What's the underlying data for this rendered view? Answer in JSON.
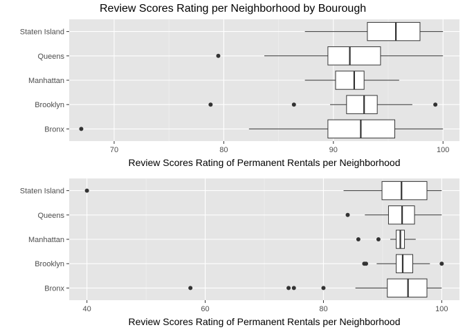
{
  "chart_data": [
    {
      "type": "boxplot",
      "title": "Review Scores Rating per Neighborhood by Bourough",
      "xlabel": "Review Scores Rating of Permanent Rentals per Neighborhood",
      "ylabel": "",
      "xlim": [
        65.9,
        101.5
      ],
      "xticks": [
        70,
        80,
        90,
        100
      ],
      "grid": true,
      "categories": [
        "Bronx",
        "Brooklyn",
        "Manhattan",
        "Queens",
        "Staten Island"
      ],
      "boxes": [
        {
          "category": "Bronx",
          "whisker_low": 82.3,
          "q1": 89.5,
          "median": 92.5,
          "q3": 95.6,
          "whisker_high": 100,
          "outliers": [
            67
          ]
        },
        {
          "category": "Brooklyn",
          "whisker_low": 89.7,
          "q1": 91.2,
          "median": 92.8,
          "q3": 94.0,
          "whisker_high": 97.2,
          "outliers": [
            78.8,
            86.4,
            99.3
          ]
        },
        {
          "category": "Manhattan",
          "whisker_low": 87.4,
          "q1": 90.2,
          "median": 91.9,
          "q3": 92.8,
          "whisker_high": 96.0,
          "outliers": []
        },
        {
          "category": "Queens",
          "whisker_low": 83.7,
          "q1": 89.5,
          "median": 91.5,
          "q3": 94.3,
          "whisker_high": 100,
          "outliers": [
            79.5
          ]
        },
        {
          "category": "Staten Island",
          "whisker_low": 87.4,
          "q1": 93.1,
          "median": 95.7,
          "q3": 97.9,
          "whisker_high": 100,
          "outliers": []
        }
      ]
    },
    {
      "type": "boxplot",
      "title": "",
      "xlabel": "Review Scores Rating of Permanent Rentals per Neighborhood",
      "ylabel": "",
      "xlim": [
        37.0,
        103.0
      ],
      "xticks": [
        40,
        60,
        80,
        100
      ],
      "grid": true,
      "categories": [
        "Bronx",
        "Brooklyn",
        "Manhattan",
        "Queens",
        "Staten Island"
      ],
      "boxes": [
        {
          "category": "Bronx",
          "whisker_low": 85.4,
          "q1": 90.8,
          "median": 94.3,
          "q3": 97.5,
          "whisker_high": 100,
          "outliers": [
            57.5,
            74.1,
            75.0,
            80.0
          ]
        },
        {
          "category": "Brooklyn",
          "whisker_low": 89.0,
          "q1": 92.3,
          "median": 93.4,
          "q3": 95.1,
          "whisker_high": 98.0,
          "outliers": [
            86.9,
            87.2,
            100
          ]
        },
        {
          "category": "Manhattan",
          "whisker_low": 91.3,
          "q1": 92.3,
          "median": 93.0,
          "q3": 93.7,
          "whisker_high": 95.6,
          "outliers": [
            85.9,
            89.3
          ]
        },
        {
          "category": "Queens",
          "whisker_low": 87.0,
          "q1": 91.0,
          "median": 93.3,
          "q3": 95.4,
          "whisker_high": 100,
          "outliers": [
            84.1
          ]
        },
        {
          "category": "Staten Island",
          "whisker_low": 83.4,
          "q1": 89.9,
          "median": 93.2,
          "q3": 97.5,
          "whisker_high": 100,
          "outliers": [
            40.0
          ]
        }
      ]
    }
  ]
}
